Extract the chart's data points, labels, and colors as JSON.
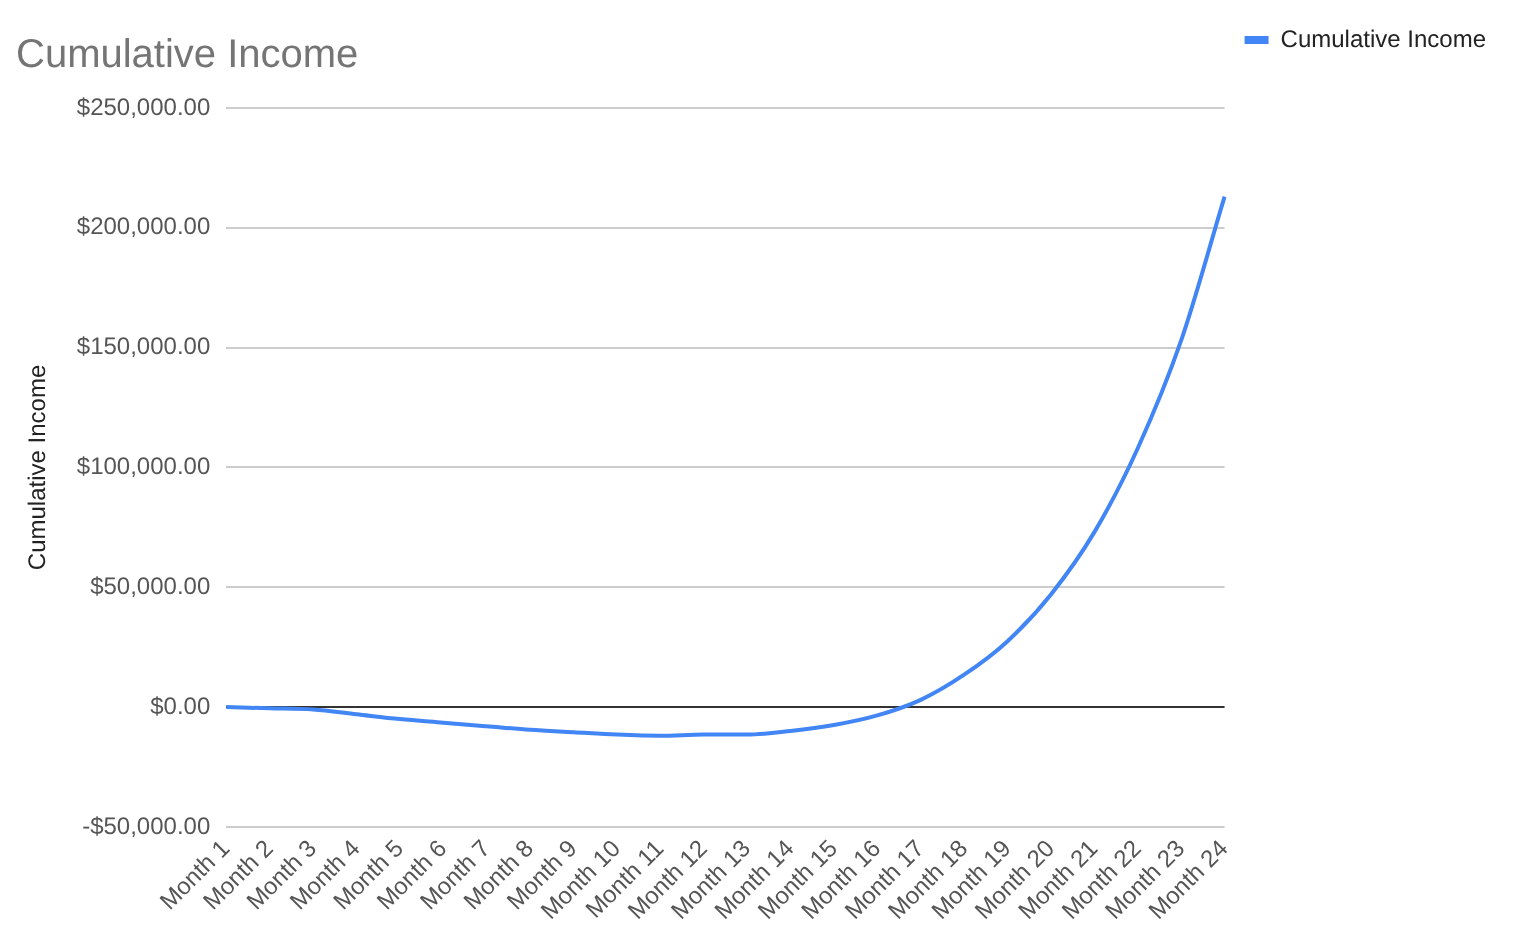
{
  "chart_data": {
    "type": "line",
    "title": "Cumulative Income",
    "ylabel": "Cumulative Income",
    "categories": [
      "Month 1",
      "Month 2",
      "Month 3",
      "Month 4",
      "Month 5",
      "Month 6",
      "Month 7",
      "Month 8",
      "Month 9",
      "Month 10",
      "Month 11",
      "Month 12",
      "Month 13",
      "Month 14",
      "Month 15",
      "Month 16",
      "Month 17",
      "Month 18",
      "Month 19",
      "Month 20",
      "Month 21",
      "Month 22",
      "Month 23",
      "Month 24"
    ],
    "series": [
      {
        "name": "Cumulative Income",
        "color": "#4285f4",
        "values": [
          0,
          -500,
          -1000,
          -3000,
          -5000,
          -6500,
          -8000,
          -9500,
          -10500,
          -11500,
          -12000,
          -11500,
          -11500,
          -10000,
          -7500,
          -3500,
          3000,
          13500,
          27500,
          47000,
          73000,
          108000,
          153000,
          213000
        ]
      }
    ],
    "ylim": [
      -50000,
      250000
    ],
    "yticks": [
      {
        "value": -50000,
        "label": "-$50,000.00"
      },
      {
        "value": 0,
        "label": "$0.00"
      },
      {
        "value": 50000,
        "label": "$50,000.00"
      },
      {
        "value": 100000,
        "label": "$100,000.00"
      },
      {
        "value": 150000,
        "label": "$150,000.00"
      },
      {
        "value": 200000,
        "label": "$200,000.00"
      },
      {
        "value": 250000,
        "label": "$250,000.00"
      }
    ],
    "grid": "y",
    "legend": "top right",
    "marker": "none",
    "line_style": "solid"
  }
}
